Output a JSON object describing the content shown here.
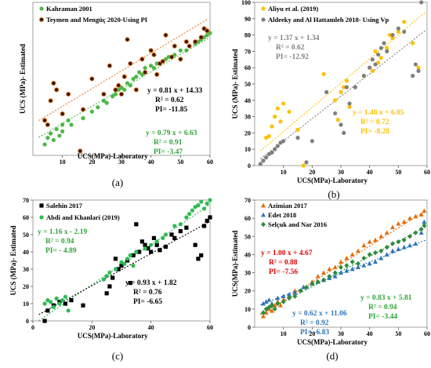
{
  "chart_data": [
    {
      "id": "a",
      "type": "scatter",
      "caption": "(a)",
      "xlabel": "UCS(MPa)-Laboratory",
      "ylabel": "UCS (MPa)- Estimated",
      "xlim": [
        0,
        60
      ],
      "ylim": [
        0,
        70
      ],
      "xticks": [
        10,
        20,
        30,
        40,
        50,
        60
      ],
      "yticks": [],
      "series": [
        {
          "name": "Kahraman 2001",
          "color": "#4db848",
          "edge": "#4db848",
          "marker": "circle",
          "x": [
            4,
            5,
            6,
            7,
            8,
            9,
            10,
            10,
            12,
            13,
            17,
            20,
            22,
            24,
            25,
            27,
            28,
            29,
            30,
            31,
            32,
            33,
            34,
            35,
            36,
            37,
            38,
            40,
            41,
            42,
            44,
            45,
            46,
            48,
            50,
            52,
            53,
            55,
            56,
            57,
            58,
            59,
            60
          ],
          "y": [
            5,
            8,
            10,
            7,
            12,
            9,
            11,
            14,
            16,
            14,
            17,
            20,
            22,
            25,
            24,
            27,
            28,
            30,
            31,
            30,
            33,
            32,
            35,
            36,
            38,
            37,
            40,
            41,
            40,
            42,
            43,
            44,
            45,
            46,
            48,
            48,
            50,
            51,
            52,
            53,
            54,
            55,
            56
          ]
        },
        {
          "name": "Teymen and Mengüç 2020-Using PI",
          "color": "#3a1505",
          "edge": "#e87722",
          "marker": "circle",
          "x": [
            4,
            5,
            6,
            7,
            8,
            10,
            12,
            16,
            17,
            20,
            24,
            26,
            28,
            29,
            30,
            31,
            32,
            33,
            35,
            37,
            38,
            40,
            41,
            42,
            43,
            44,
            45,
            47,
            48,
            50,
            52,
            53,
            55,
            57,
            58,
            59
          ],
          "y": [
            16,
            14,
            25,
            33,
            30,
            19,
            28,
            2,
            21,
            35,
            28,
            41,
            30,
            32,
            28,
            36,
            53,
            42,
            30,
            44,
            38,
            48,
            46,
            37,
            42,
            43,
            55,
            45,
            50,
            44,
            52,
            50,
            52,
            54,
            58,
            57
          ]
        }
      ],
      "fits": [
        {
          "equation": "y = 0.81 x + 14.33",
          "r2": "R² = 0.62",
          "pi": "PI= -11.85",
          "color": "#000000",
          "slope": 0.81,
          "intercept": 14.33,
          "line_color": "#e87722"
        },
        {
          "equation": "y = 0.79 x + 6.63",
          "r2": "R² = 0.91",
          "pi": "PI= -3.47",
          "color": "#2fa33a",
          "slope": 0.79,
          "intercept": 6.63,
          "line_color": "#4db848"
        }
      ]
    },
    {
      "id": "b",
      "type": "scatter",
      "caption": "(b)",
      "xlabel": "UCS(MPa)-Laboratory",
      "ylabel": "UCS (MPa)- Estimated",
      "xlim": [
        0,
        60
      ],
      "ylim": [
        0,
        100
      ],
      "xticks": [
        10,
        20,
        30,
        40,
        50,
        60
      ],
      "yticks": [
        0,
        10,
        20,
        30,
        40,
        50,
        60,
        70,
        80,
        90,
        100
      ],
      "series": [
        {
          "name": "Aliyu et al. (2019)",
          "color": "#ffc000",
          "edge": "#ffc000",
          "marker": "circle",
          "x": [
            4,
            5,
            6,
            7,
            8,
            9,
            10,
            12,
            15,
            17,
            24,
            28,
            29,
            30,
            31,
            32,
            33,
            38,
            40,
            41,
            42,
            43,
            44,
            45,
            46,
            47,
            48,
            50,
            52,
            55,
            57
          ],
          "y": [
            17,
            18,
            24,
            30,
            35,
            27,
            38,
            33,
            22,
            0,
            56,
            40,
            28,
            45,
            48,
            52,
            36,
            55,
            60,
            58,
            70,
            63,
            66,
            75,
            72,
            80,
            78,
            82,
            88,
            75,
            60
          ]
        },
        {
          "name": "Aldeeky and Al Hattamleh 2018- Using Vp",
          "color": "#7f7f7f",
          "edge": "#7f7f7f",
          "marker": "circle",
          "x": [
            2,
            3,
            4,
            5,
            6,
            7,
            8,
            9,
            10,
            15,
            18,
            20,
            25,
            28,
            30,
            31,
            32,
            33,
            35,
            38,
            40,
            41,
            42,
            43,
            44,
            45,
            46,
            48,
            50,
            52,
            55,
            56,
            57,
            58
          ],
          "y": [
            1,
            3,
            5,
            7,
            8,
            10,
            12,
            14,
            15,
            17,
            2,
            15,
            45,
            32,
            25,
            20,
            48,
            38,
            48,
            55,
            60,
            65,
            62,
            68,
            72,
            75,
            70,
            80,
            84,
            82,
            55,
            62,
            58,
            100
          ]
        }
      ],
      "fits": [
        {
          "equation": "y = 1.37 x + 1.34",
          "r2": "R² = 0.62",
          "pi": "PI= -12.92",
          "color": "#7f7f7f",
          "slope": 1.37,
          "intercept": 1.34,
          "line_color": "#7f7f7f"
        },
        {
          "equation": "y = 1.48 x + 6.05",
          "r2": "R² = 0.72",
          "pi": "PI= -8.28",
          "color": "#ffc000",
          "slope": 1.48,
          "intercept": 6.05,
          "line_color": "#ffc000"
        }
      ]
    },
    {
      "id": "c",
      "type": "scatter",
      "caption": "(c)",
      "xlabel": "UCS(MPa)-Laboratory",
      "ylabel": "UCS (MPa)- Estimated",
      "xlim": [
        0,
        60
      ],
      "ylim": [
        0,
        70
      ],
      "xticks": [
        0,
        20,
        40,
        60
      ],
      "yticks": [
        0,
        10,
        20,
        30,
        40,
        50,
        60,
        70
      ],
      "series": [
        {
          "name": "Salehin 2017",
          "color": "#000000",
          "edge": "#000000",
          "marker": "square",
          "x": [
            4,
            5,
            7,
            9,
            11,
            13,
            17,
            25,
            26,
            27,
            28,
            29,
            30,
            32,
            33,
            34,
            35,
            36,
            37,
            38,
            39,
            40,
            41,
            42,
            43,
            45,
            47,
            48,
            50,
            52,
            55,
            56,
            57,
            58,
            59,
            60
          ],
          "y": [
            0,
            6,
            9,
            11,
            10,
            12,
            9,
            16,
            20,
            25,
            36,
            30,
            32,
            35,
            22,
            38,
            56,
            40,
            46,
            44,
            42,
            40,
            48,
            44,
            41,
            43,
            50,
            48,
            52,
            54,
            44,
            36,
            38,
            55,
            58,
            60
          ]
        },
        {
          "name": "Abdi and Khanlari (2019)",
          "color": "#2fba55",
          "edge": "#2fba55",
          "marker": "circle",
          "x": [
            4,
            5,
            6,
            7,
            8,
            9,
            10,
            11,
            12,
            24,
            25,
            26,
            28,
            30,
            31,
            32,
            33,
            34,
            35,
            38,
            40,
            42,
            44,
            45,
            48,
            50,
            52,
            53,
            54,
            55,
            56,
            57,
            58,
            59,
            60
          ],
          "y": [
            10,
            12,
            11,
            8,
            13,
            10,
            12,
            14,
            6,
            24,
            26,
            28,
            30,
            34,
            33,
            36,
            38,
            32,
            40,
            42,
            44,
            46,
            48,
            50,
            55,
            56,
            60,
            62,
            64,
            66,
            67,
            69,
            65,
            68,
            70
          ]
        }
      ],
      "fits": [
        {
          "equation": "y = 1.16 x - 2.19",
          "r2": "R² = 0.94",
          "pi": "PI= - 4.89",
          "color": "#2fa33a",
          "slope": 1.16,
          "intercept": -2.19,
          "line_color": "#2fba55"
        },
        {
          "equation": "y = 0.93 x + 1.82",
          "r2": "R² = 0.76",
          "pi": "PI= -6.65",
          "color": "#000000",
          "slope": 0.93,
          "intercept": 1.82,
          "line_color": "#000000"
        }
      ]
    },
    {
      "id": "d",
      "type": "scatter",
      "caption": "(d)",
      "xlabel": "UCS(MPa)-Laboratory",
      "ylabel": "UCS(MPa)-Estimated",
      "xlim": [
        0,
        60
      ],
      "ylim": [
        0,
        70
      ],
      "xticks": [
        10,
        20,
        30,
        40,
        50,
        60
      ],
      "yticks": [
        0,
        10,
        20,
        30,
        40,
        50,
        60,
        70
      ],
      "series": [
        {
          "name": "Azimian 2017",
          "color": "#e36c0a",
          "edge": "#e36c0a",
          "marker": "triangle",
          "x": [
            3,
            4,
            5,
            6,
            7,
            8,
            9,
            10,
            12,
            14,
            17,
            20,
            22,
            24,
            26,
            28,
            30,
            32,
            34,
            36,
            38,
            40,
            42,
            44,
            46,
            48,
            50,
            52,
            54,
            56,
            58,
            59
          ],
          "y": [
            6,
            8,
            10,
            9,
            12,
            14,
            12,
            15,
            17,
            20,
            22,
            25,
            28,
            30,
            32,
            33,
            36,
            38,
            40,
            42,
            45,
            47,
            48,
            50,
            52,
            55,
            57,
            58,
            60,
            61,
            62,
            64
          ]
        },
        {
          "name": "Edet 2018",
          "color": "#2e75b6",
          "edge": "#2e75b6",
          "marker": "triangle",
          "x": [
            3,
            4,
            5,
            6,
            8,
            10,
            12,
            14,
            17,
            20,
            22,
            24,
            26,
            28,
            30,
            32,
            34,
            36,
            38,
            40,
            42,
            44,
            46,
            48,
            50,
            52,
            54,
            56,
            58,
            59
          ],
          "y": [
            13,
            14,
            15,
            13,
            16,
            17,
            18,
            19,
            22,
            24,
            25,
            26,
            27,
            28,
            30,
            31,
            32,
            33,
            34,
            35,
            36,
            38,
            40,
            42,
            43,
            44,
            45,
            46,
            52,
            58
          ]
        },
        {
          "name": "Selçuk and Nar 2016",
          "color": "#2e8b3a",
          "edge": "#2e8b3a",
          "marker": "diamond",
          "x": [
            3,
            4,
            5,
            6,
            7,
            8,
            10,
            12,
            14,
            16,
            18,
            20,
            22,
            24,
            26,
            28,
            30,
            32,
            34,
            36,
            38,
            40,
            42,
            44,
            46,
            48,
            50,
            52,
            54,
            56,
            58,
            59
          ],
          "y": [
            8,
            10,
            11,
            12,
            10,
            13,
            14,
            16,
            17,
            20,
            22,
            24,
            25,
            26,
            28,
            30,
            33,
            34,
            36,
            35,
            38,
            40,
            41,
            42,
            44,
            46,
            47,
            48,
            50,
            52,
            54,
            56
          ]
        }
      ],
      "fits": [
        {
          "equation": "y = 1.00 x + 4.67",
          "r2": "R² = 0.88",
          "pi": "PI= -7.56",
          "color": "#e00000",
          "slope": 1.0,
          "intercept": 4.67,
          "line_color": "#e36c0a"
        },
        {
          "equation": "y = 0.83 x + 5.81",
          "r2": "R² = 0.94",
          "pi": "PI= -3.44",
          "color": "#2fa33a",
          "slope": 0.83,
          "intercept": 5.81,
          "line_color": "#2e8b3a"
        },
        {
          "equation": "y = 0.62 x + 11.06",
          "r2": "R² = 0.92",
          "pi": "PI= -6.83",
          "color": "#2e75b6",
          "slope": 0.62,
          "intercept": 11.06,
          "line_color": "#2e75b6"
        }
      ]
    }
  ]
}
